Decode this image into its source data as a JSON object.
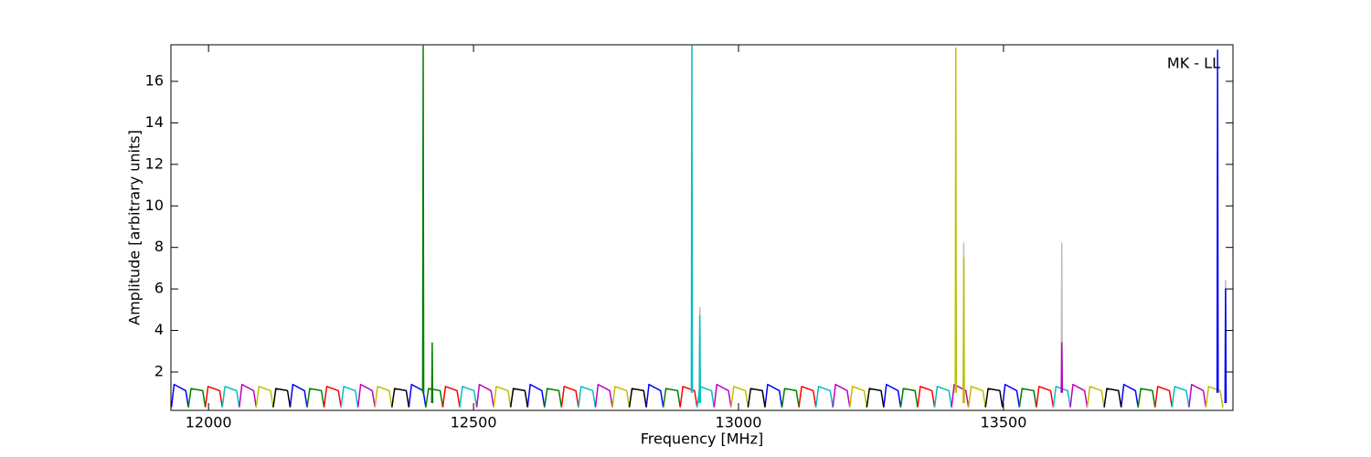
{
  "chart_data": {
    "type": "line",
    "annotation": "MK - LL",
    "xlabel": "Frequency [MHz]",
    "ylabel": "Amplitude [arbitrary units]",
    "xlim": [
      11929,
      13933
    ],
    "ylim": [
      0.15,
      17.76
    ],
    "xticks": [
      12000,
      12500,
      13000,
      13500
    ],
    "yticks": [
      2,
      4,
      6,
      8,
      10,
      12,
      14,
      16
    ],
    "series": [
      {
        "color": "#bbbbbb",
        "x": [
          12926,
          12927,
          12928,
          null,
          13424,
          13425,
          13426,
          null,
          13609,
          13610,
          13611,
          null,
          13918,
          13919,
          13920
        ],
        "values": [
          0.5,
          5.1,
          0.5,
          null,
          0.5,
          8.2,
          0.5,
          null,
          1.0,
          8.2,
          1.0,
          null,
          0.5,
          6.4,
          0.5
        ]
      },
      {
        "color": "#0000ff",
        "x": [
          11930,
          11935,
          11957,
          11962,
          null,
          12154,
          12159,
          12181,
          12186,
          null,
          12378,
          12383,
          12405,
          12410,
          null,
          12602,
          12607,
          12629,
          12634,
          null,
          12826,
          12831,
          12853,
          12858,
          null,
          13050,
          13055,
          13077,
          13082,
          null,
          13274,
          13279,
          13301,
          13306,
          null,
          13498,
          13503,
          13525,
          13530,
          null,
          13722,
          13727,
          13749,
          13754
        ],
        "values": [
          0.3,
          1.4,
          1.1,
          0.3,
          null,
          0.3,
          1.4,
          1.1,
          0.3,
          null,
          0.3,
          1.4,
          1.1,
          0.3,
          null,
          0.3,
          1.4,
          1.1,
          0.3,
          null,
          0.3,
          1.4,
          1.1,
          0.3,
          null,
          0.3,
          1.4,
          1.1,
          0.3,
          null,
          0.3,
          1.4,
          1.1,
          0.3,
          null,
          0.3,
          1.4,
          1.1,
          0.3,
          null,
          0.3,
          1.4,
          1.1,
          0.3
        ]
      },
      {
        "color": "#008000",
        "x": [
          11962,
          11967,
          11989,
          11994,
          null,
          12186,
          12191,
          12213,
          12218,
          null,
          12410,
          12415,
          12437,
          12442,
          null,
          12634,
          12639,
          12661,
          12666,
          null,
          12858,
          12863,
          12885,
          12890,
          null,
          13082,
          13087,
          13109,
          13114,
          null,
          13306,
          13311,
          13333,
          13338,
          null,
          13530,
          13535,
          13557,
          13562,
          null,
          13754,
          13759,
          13781,
          13786
        ],
        "values": [
          0.3,
          1.2,
          1.1,
          0.3,
          null,
          0.3,
          1.2,
          1.1,
          0.3,
          null,
          0.3,
          1.2,
          1.1,
          0.3,
          null,
          0.3,
          1.2,
          1.1,
          0.3,
          null,
          0.3,
          1.2,
          1.1,
          0.3,
          null,
          0.3,
          1.2,
          1.1,
          0.3,
          null,
          0.3,
          1.2,
          1.1,
          0.3,
          null,
          0.3,
          1.2,
          1.1,
          0.3,
          null,
          0.3,
          1.2,
          1.1,
          0.3
        ]
      },
      {
        "color": "#ff0000",
        "x": [
          11994,
          11999,
          12021,
          12026,
          null,
          12218,
          12223,
          12245,
          12250,
          null,
          12442,
          12447,
          12469,
          12474,
          null,
          12666,
          12671,
          12693,
          12698,
          null,
          12890,
          12895,
          12917,
          12922,
          null,
          13114,
          13119,
          13141,
          13146,
          null,
          13338,
          13343,
          13365,
          13370,
          null,
          13562,
          13567,
          13589,
          13594,
          null,
          13786,
          13791,
          13813,
          13818
        ],
        "values": [
          0.3,
          1.3,
          1.1,
          0.3,
          null,
          0.3,
          1.3,
          1.1,
          0.3,
          null,
          0.3,
          1.3,
          1.1,
          0.3,
          null,
          0.3,
          1.3,
          1.1,
          0.3,
          null,
          0.3,
          1.3,
          1.1,
          0.3,
          null,
          0.3,
          1.3,
          1.1,
          0.3,
          null,
          0.3,
          1.3,
          1.1,
          0.3,
          null,
          0.3,
          1.3,
          1.1,
          0.3,
          null,
          0.3,
          1.3,
          1.1,
          0.3
        ]
      },
      {
        "color": "#00bfbf",
        "x": [
          12026,
          12031,
          12053,
          12058,
          null,
          12250,
          12255,
          12277,
          12282,
          null,
          12474,
          12479,
          12501,
          12506,
          null,
          12698,
          12703,
          12725,
          12730,
          null,
          12922,
          12927,
          12949,
          12954,
          null,
          13146,
          13151,
          13173,
          13178,
          null,
          13370,
          13375,
          13397,
          13402,
          null,
          13594,
          13599,
          13621,
          13626,
          null,
          13818,
          13823,
          13845,
          13850
        ],
        "values": [
          0.3,
          1.3,
          1.1,
          0.3,
          null,
          0.3,
          1.3,
          1.1,
          0.3,
          null,
          0.3,
          1.3,
          1.1,
          0.3,
          null,
          0.3,
          1.3,
          1.1,
          0.3,
          null,
          0.3,
          1.3,
          1.1,
          0.3,
          null,
          0.3,
          1.3,
          1.1,
          0.3,
          null,
          0.3,
          1.3,
          1.1,
          0.3,
          null,
          0.3,
          1.3,
          1.1,
          0.3,
          null,
          0.3,
          1.3,
          1.1,
          0.3
        ]
      },
      {
        "color": "#bf00bf",
        "x": [
          12058,
          12063,
          12085,
          12090,
          null,
          12282,
          12287,
          12309,
          12314,
          null,
          12506,
          12511,
          12533,
          12538,
          null,
          12730,
          12735,
          12757,
          12762,
          null,
          12954,
          12959,
          12981,
          12986,
          null,
          13178,
          13183,
          13205,
          13210,
          null,
          13402,
          13407,
          13429,
          13434,
          null,
          13626,
          13631,
          13653,
          13658,
          null,
          13850,
          13855,
          13877,
          13882
        ],
        "values": [
          0.3,
          1.4,
          1.1,
          0.3,
          null,
          0.3,
          1.4,
          1.1,
          0.3,
          null,
          0.3,
          1.4,
          1.1,
          0.3,
          null,
          0.3,
          1.4,
          1.1,
          0.3,
          null,
          0.3,
          1.4,
          1.1,
          0.3,
          null,
          0.3,
          1.4,
          1.1,
          0.3,
          null,
          0.3,
          1.4,
          1.1,
          0.3,
          null,
          0.3,
          1.4,
          1.1,
          0.3,
          null,
          0.3,
          1.4,
          1.1,
          0.3
        ]
      },
      {
        "color": "#bfbf00",
        "x": [
          12090,
          12095,
          12117,
          12122,
          null,
          12314,
          12319,
          12341,
          12346,
          null,
          12538,
          12543,
          12565,
          12570,
          null,
          12762,
          12767,
          12789,
          12794,
          null,
          12986,
          12991,
          13013,
          13018,
          null,
          13210,
          13215,
          13237,
          13242,
          null,
          13434,
          13439,
          13461,
          13466,
          null,
          13658,
          13663,
          13685,
          13690,
          null,
          13882,
          13887,
          13909,
          13914
        ],
        "values": [
          0.3,
          1.3,
          1.1,
          0.3,
          null,
          0.3,
          1.3,
          1.1,
          0.3,
          null,
          0.3,
          1.3,
          1.1,
          0.3,
          null,
          0.3,
          1.3,
          1.1,
          0.3,
          null,
          0.3,
          1.3,
          1.1,
          0.3,
          null,
          0.3,
          1.3,
          1.1,
          0.3,
          null,
          0.3,
          1.3,
          1.1,
          0.3,
          null,
          0.3,
          1.3,
          1.1,
          0.3,
          null,
          0.3,
          1.3,
          1.1,
          0.3
        ]
      },
      {
        "color": "#000000",
        "x": [
          12122,
          12127,
          12149,
          12154,
          null,
          12346,
          12351,
          12373,
          12378,
          null,
          12570,
          12575,
          12597,
          12602,
          null,
          12794,
          12799,
          12821,
          12826,
          null,
          13018,
          13023,
          13045,
          13050,
          null,
          13242,
          13247,
          13269,
          13274,
          null,
          13466,
          13471,
          13493,
          13498,
          null,
          13690,
          13695,
          13717,
          13722
        ],
        "values": [
          0.3,
          1.2,
          1.1,
          0.3,
          null,
          0.3,
          1.2,
          1.1,
          0.3,
          null,
          0.3,
          1.2,
          1.1,
          0.3,
          null,
          0.3,
          1.2,
          1.1,
          0.3,
          null,
          0.3,
          1.2,
          1.1,
          0.3,
          null,
          0.3,
          1.2,
          1.1,
          0.3,
          null,
          0.3,
          1.2,
          1.1,
          0.3,
          null,
          0.3,
          1.2,
          1.1,
          0.3
        ]
      },
      {
        "color": "#008000",
        "x": [
          12404,
          12405,
          12406,
          null,
          12421,
          12422,
          12423
        ],
        "values": [
          1.0,
          17.7,
          1.0,
          null,
          0.5,
          3.4,
          0.5
        ]
      },
      {
        "color": "#00bfbf",
        "x": [
          12911,
          12912,
          12913,
          null,
          12926,
          12927,
          12928
        ],
        "values": [
          1.0,
          17.7,
          1.0,
          null,
          0.5,
          4.7,
          0.5
        ]
      },
      {
        "color": "#bfbf00",
        "x": [
          13409,
          13410,
          13411,
          null,
          13424,
          13425,
          13426
        ],
        "values": [
          1.0,
          17.6,
          1.0,
          null,
          0.5,
          7.5,
          0.5
        ]
      },
      {
        "color": "#bf00bf",
        "x": [
          13609,
          13610,
          13611
        ],
        "values": [
          1.0,
          3.4,
          1.0
        ]
      },
      {
        "color": "#0000ff",
        "x": [
          13903,
          13904,
          13905,
          null,
          13918,
          13919,
          13920
        ],
        "values": [
          1.0,
          17.5,
          1.0,
          null,
          0.5,
          6.0,
          0.5
        ]
      }
    ]
  }
}
